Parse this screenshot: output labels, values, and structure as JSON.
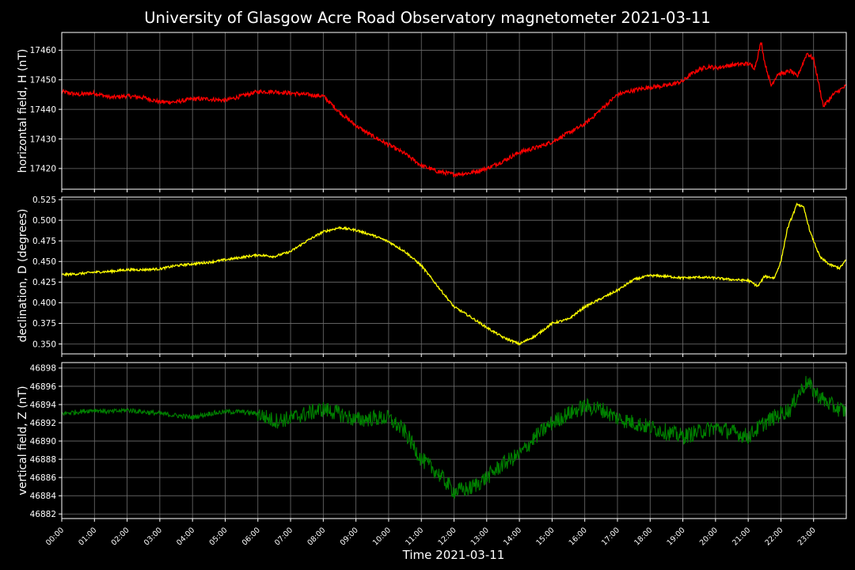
{
  "figure": {
    "title": "University of Glasgow Acre Road Observatory magnetometer 2021-03-11",
    "xlabel": "Time 2021-03-11",
    "background": "#000000",
    "foreground": "#ffffff",
    "grid_color": "#6e6e6e"
  },
  "chart_data": [
    {
      "type": "line",
      "ylabel": "horizontal field, H (nT)",
      "color": "#ff0000",
      "ylim": [
        17413,
        17466
      ],
      "yticks": [
        17420,
        17430,
        17440,
        17450,
        17460
      ],
      "ytick_labels": [
        "17420",
        "17430",
        "17440",
        "17450",
        "17460"
      ],
      "xlim": [
        0,
        24
      ],
      "grid": true,
      "noise": 0.7,
      "series": [
        {
          "x": [
            0,
            0.5,
            1,
            1.5,
            2,
            2.5,
            3,
            3.5,
            4,
            4.5,
            5,
            5.5,
            6,
            6.5,
            7,
            7.5,
            8,
            8.5,
            9,
            9.5,
            10,
            10.5,
            11,
            11.5,
            12,
            12.5,
            13,
            13.5,
            14,
            14.5,
            15,
            15.5,
            16,
            16.5,
            17,
            17.5,
            18,
            18.5,
            19,
            19.2,
            19.5,
            19.8,
            20,
            20.5,
            21,
            21.2,
            21.4,
            21.5,
            21.7,
            21.9,
            22,
            22.3,
            22.5,
            22.8,
            23,
            23.3,
            23.6,
            24
          ],
          "y": [
            17446,
            17445,
            17445.5,
            17444,
            17444.5,
            17444,
            17442.5,
            17442.5,
            17443.5,
            17443.5,
            17443,
            17444.5,
            17446,
            17446,
            17445.5,
            17445,
            17444.5,
            17439,
            17434.5,
            17431,
            17428,
            17425,
            17421,
            17419,
            17418,
            17418.5,
            17420,
            17422.5,
            17425.5,
            17427,
            17429,
            17432,
            17435,
            17440,
            17445,
            17446.5,
            17447.5,
            17448,
            17449.5,
            17451.5,
            17453.5,
            17454.5,
            17454,
            17455,
            17455.5,
            17454,
            17463,
            17456,
            17448,
            17452,
            17452,
            17453,
            17451,
            17459,
            17457,
            17441,
            17445,
            17448
          ]
        }
      ]
    },
    {
      "type": "line",
      "ylabel": "declination, D (degrees)",
      "color": "#ffff00",
      "ylim": [
        0.338,
        0.528
      ],
      "yticks": [
        0.35,
        0.375,
        0.4,
        0.425,
        0.45,
        0.475,
        0.5,
        0.525
      ],
      "ytick_labels": [
        "0.350",
        "0.375",
        "0.400",
        "0.425",
        "0.450",
        "0.475",
        "0.500",
        "0.525"
      ],
      "xlim": [
        0,
        24
      ],
      "grid": true,
      "noise": 0.0014,
      "series": [
        {
          "x": [
            0,
            0.5,
            1,
            1.5,
            2,
            2.5,
            3,
            3.5,
            4,
            4.5,
            5,
            5.5,
            6,
            6.5,
            7,
            7.5,
            8,
            8.5,
            9,
            9.5,
            10,
            10.5,
            11,
            11.5,
            12,
            12.5,
            13,
            13.5,
            14,
            14.5,
            15,
            15.5,
            16,
            16.5,
            17,
            17.5,
            18,
            18.5,
            19,
            19.5,
            20,
            20.5,
            21,
            21.3,
            21.5,
            21.8,
            22,
            22.2,
            22.5,
            22.7,
            22.9,
            23.2,
            23.5,
            23.8,
            24
          ],
          "y": [
            0.434,
            0.435,
            0.437,
            0.438,
            0.44,
            0.44,
            0.441,
            0.445,
            0.447,
            0.449,
            0.452,
            0.455,
            0.458,
            0.456,
            0.462,
            0.475,
            0.486,
            0.491,
            0.488,
            0.482,
            0.474,
            0.462,
            0.445,
            0.42,
            0.395,
            0.383,
            0.37,
            0.358,
            0.35,
            0.36,
            0.375,
            0.38,
            0.395,
            0.405,
            0.415,
            0.428,
            0.433,
            0.432,
            0.43,
            0.431,
            0.43,
            0.428,
            0.427,
            0.42,
            0.432,
            0.43,
            0.45,
            0.49,
            0.52,
            0.515,
            0.485,
            0.455,
            0.446,
            0.442,
            0.452
          ]
        }
      ]
    },
    {
      "type": "line",
      "ylabel": "vertical field, Z (nT)",
      "color": "#008000",
      "ylim": [
        46881.5,
        46898.6
      ],
      "yticks": [
        46882,
        46884,
        46886,
        46888,
        46890,
        46892,
        46894,
        46896,
        46898
      ],
      "ytick_labels": [
        "46882",
        "46884",
        "46886",
        "46888",
        "46890",
        "46892",
        "46894",
        "46896",
        "46898"
      ],
      "xlim": [
        0,
        24
      ],
      "xticks": [
        0,
        1,
        2,
        3,
        4,
        5,
        6,
        7,
        8,
        9,
        10,
        11,
        12,
        13,
        14,
        15,
        16,
        17,
        18,
        19,
        20,
        21,
        22,
        23
      ],
      "xtick_labels": [
        "00:00",
        "01:00",
        "02:00",
        "03:00",
        "04:00",
        "05:00",
        "06:00",
        "07:00",
        "08:00",
        "09:00",
        "10:00",
        "11:00",
        "12:00",
        "13:00",
        "14:00",
        "15:00",
        "16:00",
        "17:00",
        "18:00",
        "19:00",
        "20:00",
        "21:00",
        "22:00",
        "23:00"
      ],
      "grid": true,
      "noise": 0.9,
      "series": [
        {
          "x": [
            0,
            0.5,
            1,
            1.5,
            2,
            2.5,
            3,
            3.5,
            4,
            4.5,
            5,
            5.5,
            6,
            6.5,
            7,
            7.5,
            8,
            8.5,
            9,
            9.5,
            10,
            10.5,
            11,
            11.5,
            12,
            12.5,
            13,
            13.5,
            14,
            14.5,
            15,
            15.5,
            16,
            16.5,
            17,
            17.5,
            18,
            18.5,
            19,
            19.5,
            20,
            20.5,
            21,
            21.5,
            22,
            22.3,
            22.5,
            22.8,
            23,
            23.3,
            23.6,
            24
          ],
          "y": [
            46893,
            46893.2,
            46893.4,
            46893.2,
            46893.4,
            46893.2,
            46893,
            46892.8,
            46892.6,
            46893,
            46893.2,
            46893.2,
            46893,
            46892.2,
            46892.5,
            46893,
            46893.5,
            46893,
            46892.3,
            46892.5,
            46892.5,
            46891,
            46888,
            46886.5,
            46884.5,
            46884.8,
            46886,
            46887.5,
            46888.5,
            46890.5,
            46892,
            46893,
            46893.8,
            46893.5,
            46892.5,
            46892,
            46891.5,
            46891,
            46890.5,
            46891,
            46891.5,
            46891,
            46890.5,
            46892,
            46893,
            46893.5,
            46895,
            46896.5,
            46895.5,
            46894.5,
            46893.8,
            46893.2
          ]
        }
      ]
    }
  ]
}
